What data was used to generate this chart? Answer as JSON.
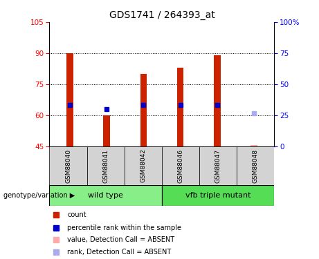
{
  "title": "GDS1741 / 264393_at",
  "samples": [
    "GSM88040",
    "GSM88041",
    "GSM88042",
    "GSM88046",
    "GSM88047",
    "GSM88048"
  ],
  "ylim_left": [
    45,
    105
  ],
  "ylim_right": [
    0,
    100
  ],
  "yticks_left": [
    45,
    60,
    75,
    90,
    105
  ],
  "yticks_right": [
    0,
    25,
    50,
    75,
    100
  ],
  "ytick_labels_right": [
    "0",
    "25",
    "50",
    "75",
    "100%"
  ],
  "count_values": [
    90,
    60,
    80,
    83,
    89,
    45
  ],
  "rank_values": [
    65,
    63,
    65,
    65,
    65,
    null
  ],
  "rank_absent_values": [
    null,
    null,
    null,
    null,
    null,
    61
  ],
  "absent_flags": [
    false,
    false,
    false,
    false,
    false,
    true
  ],
  "bar_color": "#cc2200",
  "bar_absent_color": "#ffaaaa",
  "rank_color": "#0000cc",
  "rank_absent_color": "#aaaaee",
  "bar_width": 0.18,
  "group_label": "genotype/variation",
  "legend_items": [
    {
      "label": "count",
      "color": "#cc2200"
    },
    {
      "label": "percentile rank within the sample",
      "color": "#0000cc"
    },
    {
      "label": "value, Detection Call = ABSENT",
      "color": "#ffaaaa"
    },
    {
      "label": "rank, Detection Call = ABSENT",
      "color": "#aaaaee"
    }
  ],
  "sample_area_color": "#d3d3d3",
  "wt_color": "#88ee88",
  "vfb_color": "#55dd55"
}
